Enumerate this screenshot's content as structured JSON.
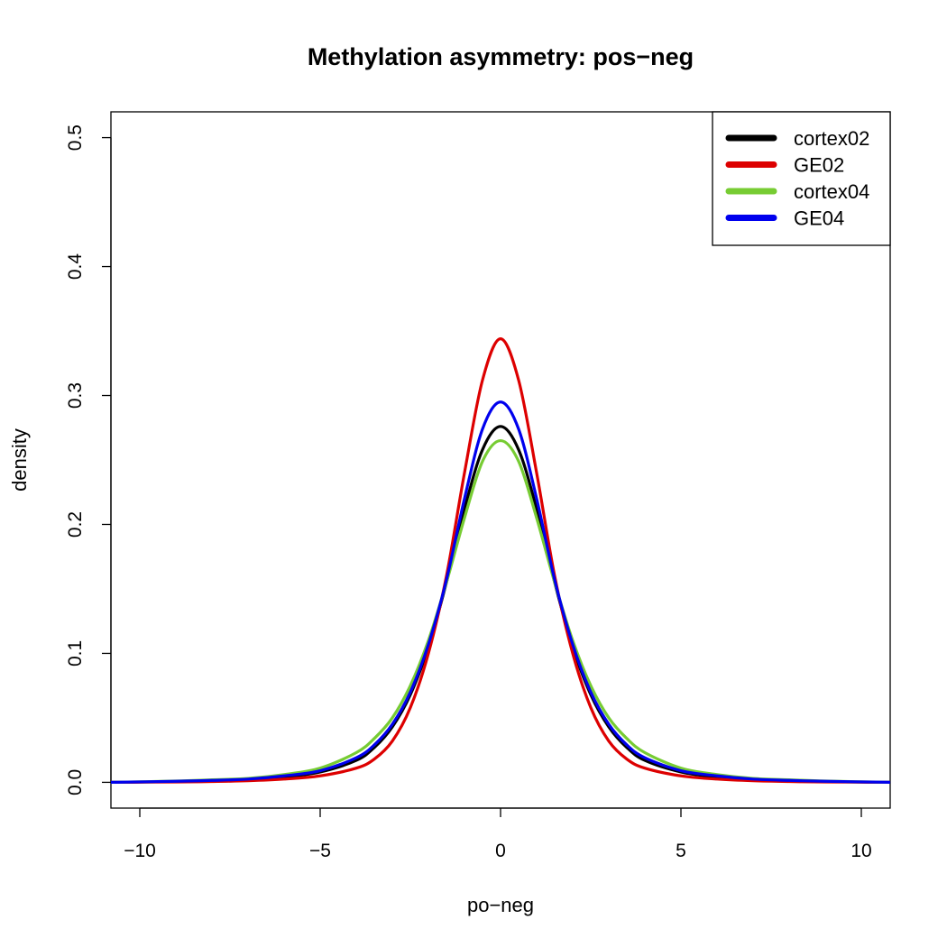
{
  "chart_data": {
    "type": "line",
    "title": "Methylation asymmetry: pos−neg",
    "xlabel": "po−neg",
    "ylabel": "density",
    "xlim": [
      -10.8,
      10.8
    ],
    "ylim": [
      -0.02,
      0.52
    ],
    "xticks": [
      -10,
      -5,
      0,
      5,
      10
    ],
    "xtick_labels": [
      "−10",
      "−5",
      "0",
      "5",
      "10"
    ],
    "yticks": [
      0.0,
      0.1,
      0.2,
      0.3,
      0.4,
      0.5
    ],
    "ytick_labels": [
      "0.0",
      "0.1",
      "0.2",
      "0.3",
      "0.4",
      "0.5"
    ],
    "grid": false,
    "legend_position": "top-right",
    "series": [
      {
        "name": "cortex02",
        "color": "#000000",
        "x": [
          -10.8,
          -9,
          -8,
          -7,
          -6,
          -5,
          -4,
          -3.5,
          -3,
          -2.5,
          -2,
          -1.5,
          -1,
          -0.5,
          0,
          0.5,
          1,
          1.5,
          2,
          2.5,
          3,
          3.5,
          4,
          5,
          6,
          7,
          8,
          9,
          10.8
        ],
        "y": [
          0.0,
          0.0005,
          0.001,
          0.002,
          0.004,
          0.008,
          0.017,
          0.027,
          0.043,
          0.068,
          0.105,
          0.155,
          0.212,
          0.258,
          0.276,
          0.258,
          0.212,
          0.155,
          0.105,
          0.068,
          0.043,
          0.027,
          0.017,
          0.008,
          0.004,
          0.002,
          0.001,
          0.0005,
          0.0
        ]
      },
      {
        "name": "GE02",
        "color": "#dd0000",
        "x": [
          -10.8,
          -9,
          -8,
          -7,
          -6,
          -5,
          -4,
          -3.5,
          -3,
          -2.5,
          -2,
          -1.5,
          -1,
          -0.5,
          0,
          0.5,
          1,
          1.5,
          2,
          2.5,
          3,
          3.5,
          4,
          5,
          6,
          7,
          8,
          9,
          10.8
        ],
        "y": [
          0.0,
          0.0003,
          0.0006,
          0.0012,
          0.0025,
          0.005,
          0.011,
          0.018,
          0.032,
          0.058,
          0.1,
          0.16,
          0.24,
          0.312,
          0.344,
          0.312,
          0.24,
          0.16,
          0.1,
          0.058,
          0.032,
          0.018,
          0.011,
          0.005,
          0.0025,
          0.0012,
          0.0006,
          0.0003,
          0.0
        ]
      },
      {
        "name": "cortex04",
        "color": "#77cc33",
        "x": [
          -10.8,
          -9,
          -8,
          -7,
          -6,
          -5,
          -4,
          -3.5,
          -3,
          -2.5,
          -2,
          -1.5,
          -1,
          -0.5,
          0,
          0.5,
          1,
          1.5,
          2,
          2.5,
          3,
          3.5,
          4,
          5,
          6,
          7,
          8,
          9,
          10.8
        ],
        "y": [
          0.0,
          0.001,
          0.002,
          0.003,
          0.006,
          0.011,
          0.023,
          0.034,
          0.05,
          0.075,
          0.11,
          0.155,
          0.205,
          0.249,
          0.265,
          0.249,
          0.205,
          0.155,
          0.11,
          0.075,
          0.05,
          0.034,
          0.023,
          0.011,
          0.006,
          0.003,
          0.002,
          0.001,
          0.0
        ]
      },
      {
        "name": "GE04",
        "color": "#0000ee",
        "x": [
          -10.8,
          -9,
          -8,
          -7,
          -6,
          -5,
          -4,
          -3.5,
          -3,
          -2.5,
          -2,
          -1.5,
          -1,
          -0.5,
          0,
          0.5,
          1,
          1.5,
          2,
          2.5,
          3,
          3.5,
          4,
          5,
          6,
          7,
          8,
          9,
          10.8
        ],
        "y": [
          0.0,
          0.0008,
          0.0015,
          0.0025,
          0.005,
          0.009,
          0.019,
          0.029,
          0.045,
          0.07,
          0.107,
          0.157,
          0.22,
          0.274,
          0.295,
          0.274,
          0.22,
          0.157,
          0.107,
          0.07,
          0.045,
          0.029,
          0.019,
          0.009,
          0.005,
          0.0025,
          0.0015,
          0.0008,
          0.0
        ]
      }
    ]
  }
}
